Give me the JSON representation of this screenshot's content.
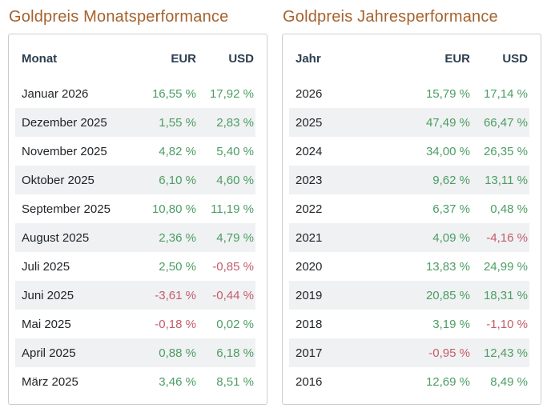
{
  "colors": {
    "title_accent": "#a5622d",
    "header_text": "#2c3e50",
    "row_text": "#212529",
    "positive": "#4d9d64",
    "negative": "#c45c6b",
    "stripe": "#eff1f2",
    "card_border": "#c9cdd0"
  },
  "chart_data": [
    {
      "type": "table",
      "title": "Goldpreis Monatsperformance",
      "columns": [
        "Monat",
        "EUR",
        "USD"
      ],
      "rows": [
        [
          "Januar 2026",
          "16,55 %",
          "17,92 %"
        ],
        [
          "Dezember 2025",
          "1,55 %",
          "2,83 %"
        ],
        [
          "November 2025",
          "4,82 %",
          "5,40 %"
        ],
        [
          "Oktober 2025",
          "6,10 %",
          "4,60 %"
        ],
        [
          "September 2025",
          "10,80 %",
          "11,19 %"
        ],
        [
          "August 2025",
          "2,36 %",
          "4,79 %"
        ],
        [
          "Juli 2025",
          "2,50 %",
          "-0,85 %"
        ],
        [
          "Juni 2025",
          "-3,61 %",
          "-0,44 %"
        ],
        [
          "Mai 2025",
          "-0,18 %",
          "0,02 %"
        ],
        [
          "April 2025",
          "0,88 %",
          "6,18 %"
        ],
        [
          "März 2025",
          "3,46 %",
          "8,51 %"
        ]
      ]
    },
    {
      "type": "table",
      "title": "Goldpreis Jahresperformance",
      "columns": [
        "Jahr",
        "EUR",
        "USD"
      ],
      "rows": [
        [
          "2026",
          "15,79 %",
          "17,14 %"
        ],
        [
          "2025",
          "47,49 %",
          "66,47 %"
        ],
        [
          "2024",
          "34,00 %",
          "26,35 %"
        ],
        [
          "2023",
          "9,62 %",
          "13,11 %"
        ],
        [
          "2022",
          "6,37 %",
          "0,48 %"
        ],
        [
          "2021",
          "4,09 %",
          "-4,16 %"
        ],
        [
          "2020",
          "13,83 %",
          "24,99 %"
        ],
        [
          "2019",
          "20,85 %",
          "18,31 %"
        ],
        [
          "2018",
          "3,19 %",
          "-1,10 %"
        ],
        [
          "2017",
          "-0,95 %",
          "12,43 %"
        ],
        [
          "2016",
          "12,69 %",
          "8,49 %"
        ]
      ]
    }
  ]
}
